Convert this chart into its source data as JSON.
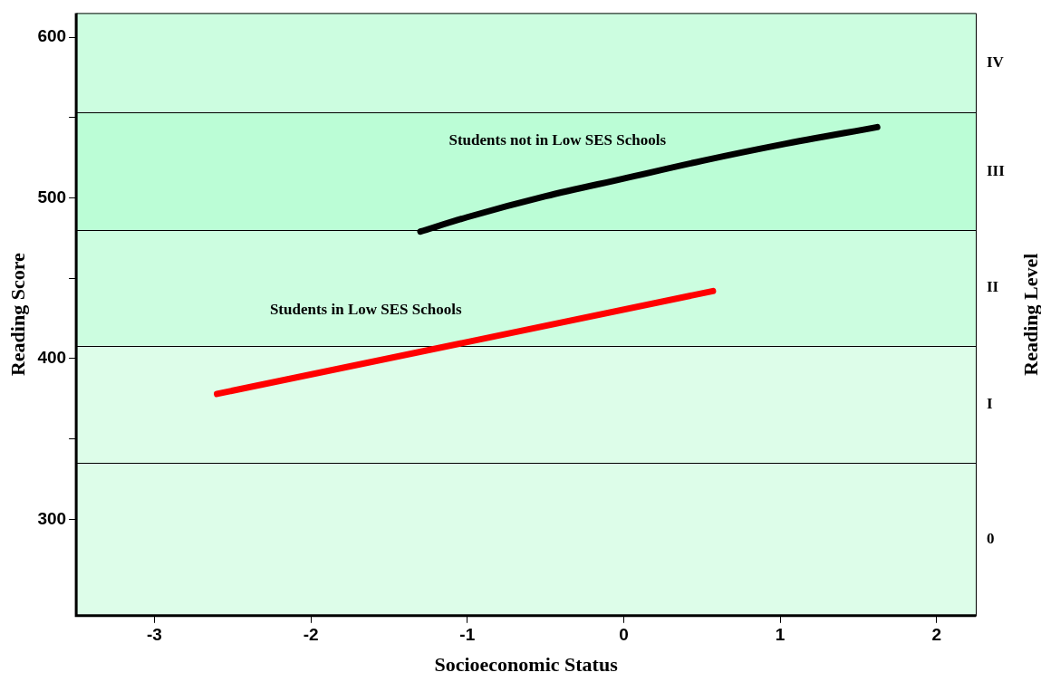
{
  "chart_data": {
    "type": "line",
    "xlabel": "Socioeconomic Status",
    "ylabel": "Reading Score",
    "y2label": "Reading Level",
    "xlim": [
      -3.5,
      2.25
    ],
    "xticks": [
      -3,
      -2,
      -1,
      0,
      1,
      2
    ],
    "ylim": [
      240,
      615
    ],
    "yticks": [
      300,
      {
        "value": 350,
        "label": null
      },
      400,
      {
        "value": 450,
        "label": null
      },
      500,
      {
        "value": 550,
        "label": null
      },
      600
    ],
    "grid": false,
    "legend": false,
    "marker": "none",
    "line_style": "solid",
    "bands": [
      {
        "axis": "y",
        "from": 240,
        "to": 335,
        "label": "0",
        "color": "#ddfde9"
      },
      {
        "axis": "y",
        "from": 335,
        "to": 408,
        "label": "I",
        "color": "#ddfde9"
      },
      {
        "axis": "y",
        "from": 408,
        "to": 480,
        "label": "II",
        "color": "#ccfde0"
      },
      {
        "axis": "y",
        "from": 480,
        "to": 553,
        "label": "III",
        "color": "#bbfdd6"
      },
      {
        "axis": "y",
        "from": 553,
        "to": 615,
        "label": "IV",
        "color": "#ccfde0"
      }
    ],
    "series": [
      {
        "name": "Students not in Low SES Schools",
        "color": "#000000",
        "x": [
          -1.3,
          -1,
          -0.5,
          0,
          0.5,
          1,
          1.62
        ],
        "values": [
          479,
          488,
          501,
          512,
          523,
          533,
          544
        ]
      },
      {
        "name": "Students in Low SES Schools",
        "color": "#ff0000",
        "x": [
          -2.6,
          0.57
        ],
        "values": [
          378,
          442
        ]
      }
    ]
  }
}
